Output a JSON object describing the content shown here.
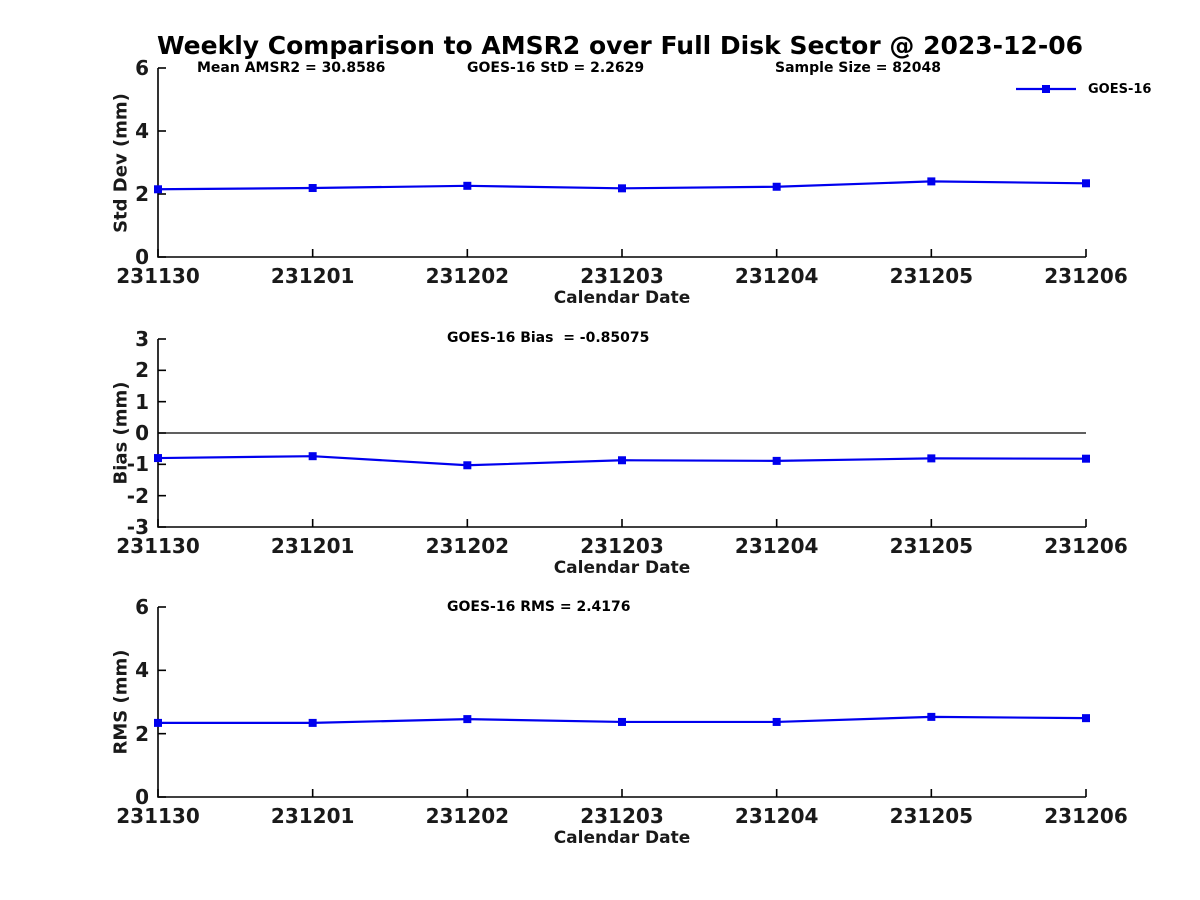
{
  "title": "Weekly Comparison to AMSR2 over Full Disk Sector @ 2023-12-06",
  "legend": {
    "label": "GOES-16"
  },
  "series_color": "#0000EE",
  "axis_color": "#000000",
  "chart_data": [
    {
      "type": "line",
      "panel": "std-dev",
      "annotations": [
        "Mean AMSR2 = 30.8586",
        "GOES-16 StD = 2.2629",
        "Sample Size = 82048"
      ],
      "x": [
        "231130",
        "231201",
        "231202",
        "231203",
        "231204",
        "231205",
        "231206"
      ],
      "series": [
        {
          "name": "GOES-16",
          "values": [
            2.15,
            2.19,
            2.26,
            2.18,
            2.23,
            2.4,
            2.34
          ]
        }
      ],
      "xlabel": "Calendar Date",
      "ylabel": "Std Dev (mm)",
      "ylim": [
        0,
        6
      ],
      "yticks": [
        0,
        2,
        4,
        6
      ],
      "grid": false,
      "zero_line": false,
      "legend_position": "upper-right",
      "legend_entries": [
        "GOES-16"
      ]
    },
    {
      "type": "line",
      "panel": "bias",
      "annotations": [
        "GOES-16 Bias  = -0.85075"
      ],
      "x": [
        "231130",
        "231201",
        "231202",
        "231203",
        "231204",
        "231205",
        "231206"
      ],
      "series": [
        {
          "name": "GOES-16",
          "values": [
            -0.8,
            -0.74,
            -1.03,
            -0.87,
            -0.89,
            -0.81,
            -0.82
          ]
        }
      ],
      "xlabel": "Calendar Date",
      "ylabel": "Bias (mm)",
      "ylim": [
        -3,
        3
      ],
      "yticks": [
        3,
        2,
        1,
        0,
        -1,
        -2,
        -3
      ],
      "grid": false,
      "zero_line": true
    },
    {
      "type": "line",
      "panel": "rms",
      "annotations": [
        "GOES-16 RMS = 2.4176"
      ],
      "x": [
        "231130",
        "231201",
        "231202",
        "231203",
        "231204",
        "231205",
        "231206"
      ],
      "series": [
        {
          "name": "GOES-16",
          "values": [
            2.34,
            2.34,
            2.46,
            2.37,
            2.37,
            2.53,
            2.49
          ]
        }
      ],
      "xlabel": "Calendar Date",
      "ylabel": "RMS (mm)",
      "ylim": [
        0,
        6
      ],
      "yticks": [
        0,
        2,
        4,
        6
      ],
      "grid": false,
      "zero_line": false
    }
  ]
}
